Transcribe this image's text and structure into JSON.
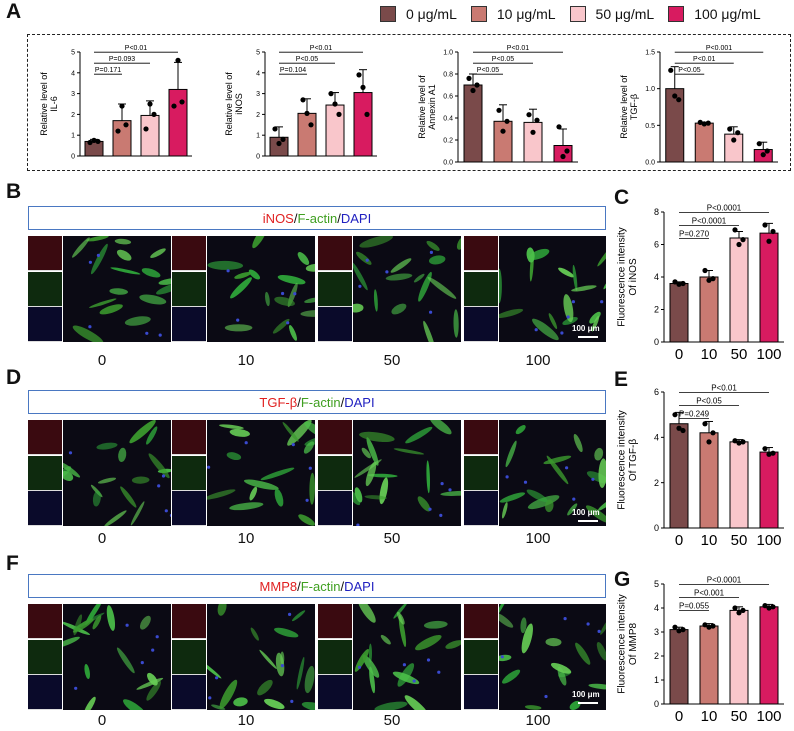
{
  "panels": {
    "A": "A",
    "B": "B",
    "C": "C",
    "D": "D",
    "E": "E",
    "F": "F",
    "G": "G"
  },
  "legend": [
    {
      "label": "0 μg/mL",
      "color": "#7a4a4a"
    },
    {
      "label": "10 μg/mL",
      "color": "#c97a72"
    },
    {
      "label": "50 μg/mL",
      "color": "#f9c6cb"
    },
    {
      "label": "100 μg/mL",
      "color": "#d81b60"
    }
  ],
  "banners": {
    "B": {
      "marker": "iNOS",
      "sep1": "/",
      "factin": "F-actin",
      "sep2": "/",
      "dapi": "DAPI"
    },
    "D": {
      "marker": "TGF-β",
      "sep1": "/",
      "factin": "F-actin",
      "sep2": "/",
      "dapi": "DAPI"
    },
    "F": {
      "marker": "MMP8",
      "sep1": "/",
      "factin": "F-actin",
      "sep2": "/",
      "dapi": "DAPI"
    }
  },
  "scale_bar": "100 μm",
  "concentrations": [
    "0",
    "10",
    "50",
    "100"
  ],
  "chart_data": [
    {
      "id": "A1",
      "type": "bar",
      "ylabel": "Relative level of\nIL-6",
      "categories": [
        "0",
        "10",
        "50",
        "100"
      ],
      "values": [
        0.7,
        1.7,
        1.95,
        3.2
      ],
      "errors": [
        0.1,
        0.8,
        0.7,
        1.3
      ],
      "points": [
        [
          0.65,
          0.75,
          0.7
        ],
        [
          1.2,
          2.4,
          1.5
        ],
        [
          1.3,
          2.5,
          2.0
        ],
        [
          2.4,
          4.6,
          2.6
        ]
      ],
      "ylim": [
        0,
        5
      ],
      "yticks": [
        0,
        1,
        2,
        3,
        4,
        5
      ],
      "annotations": [
        {
          "text": "P<0.01",
          "from": 0,
          "to": 3
        },
        {
          "text": "P=0.093",
          "from": 0,
          "to": 2
        },
        {
          "text": "P=0.171",
          "from": 0,
          "to": 1
        }
      ]
    },
    {
      "id": "A2",
      "type": "bar",
      "ylabel": "Relative level of\niNOS",
      "categories": [
        "0",
        "10",
        "50",
        "100"
      ],
      "values": [
        0.9,
        2.05,
        2.45,
        3.05
      ],
      "errors": [
        0.5,
        0.7,
        0.6,
        1.1
      ],
      "points": [
        [
          1.3,
          0.6,
          0.8
        ],
        [
          2.7,
          2.05,
          1.5
        ],
        [
          3.0,
          2.5,
          2.0
        ],
        [
          3.9,
          3.3,
          2.0
        ]
      ],
      "ylim": [
        0,
        5
      ],
      "yticks": [
        0,
        1,
        2,
        3,
        4,
        5
      ],
      "annotations": [
        {
          "text": "P<0.01",
          "from": 0,
          "to": 3
        },
        {
          "text": "P<0.05",
          "from": 0,
          "to": 2
        },
        {
          "text": "P=0.104",
          "from": 0,
          "to": 1
        }
      ]
    },
    {
      "id": "A3",
      "type": "bar",
      "ylabel": "Relative level of\nAnnexin A1",
      "categories": [
        "0",
        "10",
        "50",
        "100"
      ],
      "values": [
        0.7,
        0.37,
        0.36,
        0.15
      ],
      "errors": [
        0.1,
        0.15,
        0.12,
        0.15
      ],
      "points": [
        [
          0.76,
          0.65,
          0.7
        ],
        [
          0.47,
          0.28,
          0.37
        ],
        [
          0.43,
          0.27,
          0.38
        ],
        [
          0.32,
          0.05,
          0.1
        ]
      ],
      "ylim": [
        0,
        1.0
      ],
      "yticks": [
        0.0,
        0.2,
        0.4,
        0.6,
        0.8,
        1.0
      ],
      "annotations": [
        {
          "text": "P<0.01",
          "from": 0,
          "to": 3
        },
        {
          "text": "P<0.05",
          "from": 0,
          "to": 2
        },
        {
          "text": "P<0.05",
          "from": 0,
          "to": 1
        }
      ]
    },
    {
      "id": "A4",
      "type": "bar",
      "ylabel": "Relative level of\nTGF-β",
      "categories": [
        "0",
        "10",
        "50",
        "100"
      ],
      "values": [
        1.0,
        0.53,
        0.38,
        0.17
      ],
      "errors": [
        0.3,
        0.01,
        0.1,
        0.1
      ],
      "points": [
        [
          1.25,
          0.9,
          0.85
        ],
        [
          0.54,
          0.52,
          0.53
        ],
        [
          0.45,
          0.3,
          0.4
        ],
        [
          0.25,
          0.1,
          0.15
        ]
      ],
      "ylim": [
        0,
        1.5
      ],
      "yticks": [
        0.0,
        0.5,
        1.0,
        1.5
      ],
      "annotations": [
        {
          "text": "P<0.001",
          "from": 0,
          "to": 3
        },
        {
          "text": "P<0.01",
          "from": 0,
          "to": 2
        },
        {
          "text": "P<0.05",
          "from": 0,
          "to": 1
        }
      ]
    },
    {
      "id": "C",
      "type": "bar",
      "ylabel": "Fluorescence intensity\nOf iNOS",
      "categories": [
        "0",
        "10",
        "50",
        "100"
      ],
      "values": [
        3.6,
        4.0,
        6.4,
        6.7
      ],
      "errors": [
        0.1,
        0.4,
        0.4,
        0.6
      ],
      "points": [
        [
          3.7,
          3.55,
          3.6
        ],
        [
          4.4,
          3.8,
          3.9
        ],
        [
          6.9,
          6.0,
          6.3
        ],
        [
          7.2,
          6.2,
          6.8
        ]
      ],
      "ylim": [
        0,
        8
      ],
      "yticks": [
        0,
        2,
        4,
        6,
        8
      ],
      "annotations": [
        {
          "text": "P<0.0001",
          "from": 0,
          "to": 3
        },
        {
          "text": "P<0.0001",
          "from": 0,
          "to": 2
        },
        {
          "text": "P=0.270",
          "from": 0,
          "to": 1
        }
      ]
    },
    {
      "id": "E",
      "type": "bar",
      "ylabel": "Fluorescence intensity\nOf TGF-β",
      "categories": [
        "0",
        "10",
        "50",
        "100"
      ],
      "values": [
        4.6,
        4.2,
        3.8,
        3.35
      ],
      "errors": [
        0.5,
        0.5,
        0.1,
        0.2
      ],
      "points": [
        [
          5.0,
          4.4,
          4.3
        ],
        [
          4.6,
          3.8,
          4.2
        ],
        [
          3.85,
          3.75,
          3.8
        ],
        [
          3.5,
          3.25,
          3.3
        ]
      ],
      "ylim": [
        0,
        6
      ],
      "yticks": [
        0,
        2,
        4,
        6
      ],
      "annotations": [
        {
          "text": "P<0.01",
          "from": 0,
          "to": 3
        },
        {
          "text": "P<0.05",
          "from": 0,
          "to": 2
        },
        {
          "text": "P=0.249",
          "from": 0,
          "to": 1
        }
      ]
    },
    {
      "id": "G",
      "type": "bar",
      "ylabel": "Fluorescence intensity\nOf MMP8",
      "categories": [
        "0",
        "10",
        "50",
        "100"
      ],
      "values": [
        3.1,
        3.25,
        3.9,
        4.05
      ],
      "errors": [
        0.1,
        0.1,
        0.15,
        0.1
      ],
      "points": [
        [
          3.2,
          3.05,
          3.1
        ],
        [
          3.3,
          3.2,
          3.25
        ],
        [
          4.0,
          3.8,
          3.9
        ],
        [
          4.1,
          4.0,
          4.05
        ]
      ],
      "ylim": [
        0,
        5
      ],
      "yticks": [
        0,
        1,
        2,
        3,
        4,
        5
      ],
      "annotations": [
        {
          "text": "P<0.0001",
          "from": 0,
          "to": 3
        },
        {
          "text": "P<0.001",
          "from": 0,
          "to": 2
        },
        {
          "text": "P=0.055",
          "from": 0,
          "to": 1
        }
      ]
    }
  ]
}
